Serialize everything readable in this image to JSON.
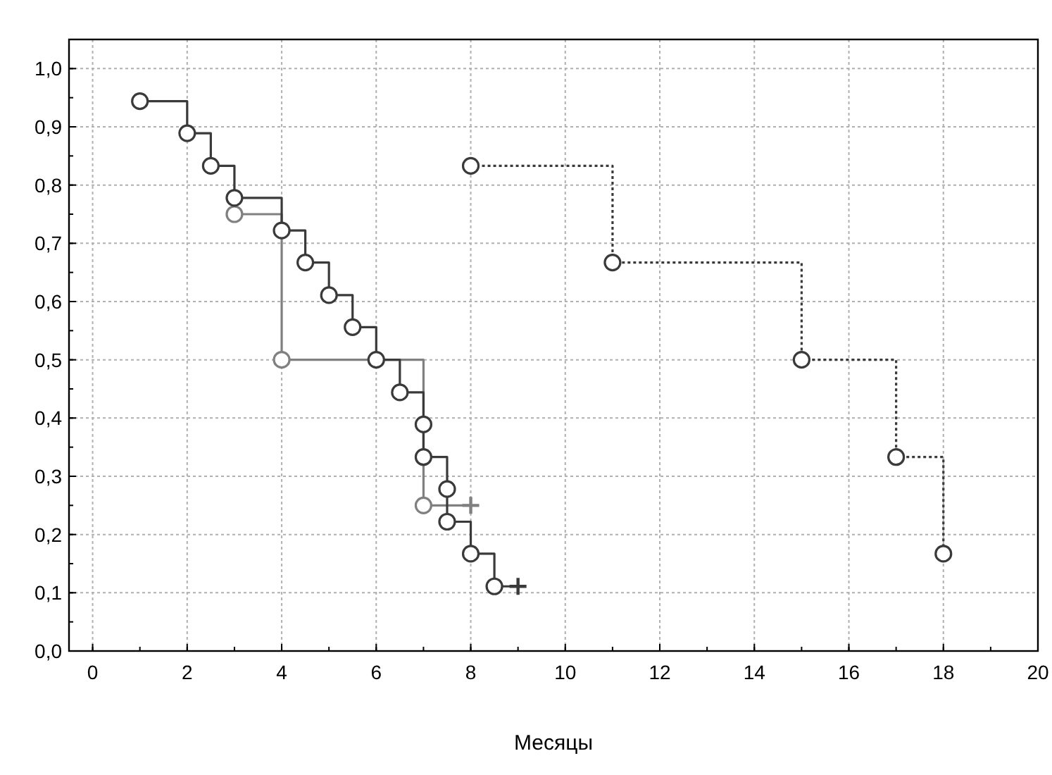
{
  "chart_data": {
    "type": "step",
    "xlabel": "Месяцы",
    "xlim": [
      -0.5,
      20
    ],
    "xticks": [
      0,
      2,
      4,
      6,
      8,
      10,
      12,
      14,
      16,
      18,
      20
    ],
    "ylim": [
      0,
      1.05
    ],
    "yticks": [
      {
        "value": 0,
        "label": "0,0"
      },
      {
        "value": 0.1,
        "label": "0,1"
      },
      {
        "value": 0.2,
        "label": "0,2"
      },
      {
        "value": 0.3,
        "label": "0,3"
      },
      {
        "value": 0.4,
        "label": "0,4"
      },
      {
        "value": 0.5,
        "label": "0,5"
      },
      {
        "value": 0.6,
        "label": "0,6"
      },
      {
        "value": 0.7,
        "label": "0,7"
      },
      {
        "value": 0.8,
        "label": "0,8"
      },
      {
        "value": 0.9,
        "label": "0,9"
      },
      {
        "value": 1.0,
        "label": "1,0"
      }
    ],
    "grid": true,
    "series": [
      {
        "color": "#808080",
        "marker": "none",
        "line_style": "solid",
        "x": [
          3,
          4,
          7,
          8
        ],
        "values": [
          0.75,
          0.5,
          0.25,
          0.25
        ]
      },
      {
        "type": "scatter",
        "color": "#808080",
        "marker": "circle",
        "x": [
          3,
          4,
          7
        ],
        "values": [
          0.75,
          0.5,
          0.25
        ]
      },
      {
        "type": "scatter",
        "color": "#808080",
        "marker": "cross",
        "x": [
          8
        ],
        "values": [
          0.25
        ]
      },
      {
        "color": "#3a3a3a",
        "marker": "none",
        "line_style": "solid",
        "x": [
          1,
          2,
          2.5,
          3,
          4,
          4.5,
          5,
          5.5,
          6,
          6.5,
          7,
          7,
          7.5,
          7.5,
          8,
          8.5,
          9
        ],
        "values": [
          0.944,
          0.889,
          0.833,
          0.778,
          0.722,
          0.667,
          0.611,
          0.556,
          0.5,
          0.444,
          0.389,
          0.333,
          0.278,
          0.222,
          0.167,
          0.111,
          0.111
        ]
      },
      {
        "type": "scatter",
        "color": "#3a3a3a",
        "marker": "circle",
        "x": [
          1,
          2,
          2.5,
          3,
          4,
          4.5,
          5,
          5.5,
          6,
          6.5,
          7,
          7,
          7.5,
          7.5,
          8,
          8.5
        ],
        "values": [
          0.944,
          0.889,
          0.833,
          0.778,
          0.722,
          0.667,
          0.611,
          0.556,
          0.5,
          0.444,
          0.389,
          0.333,
          0.278,
          0.222,
          0.167,
          0.111
        ]
      },
      {
        "type": "scatter",
        "color": "#3a3a3a",
        "marker": "cross",
        "x": [
          9
        ],
        "values": [
          0.111
        ]
      },
      {
        "color": "#3a3a3a",
        "marker": "circle",
        "line_style": "dotted",
        "x": [
          8,
          11,
          15,
          17,
          18
        ],
        "values": [
          0.833,
          0.667,
          0.5,
          0.333,
          0.167
        ]
      }
    ]
  }
}
